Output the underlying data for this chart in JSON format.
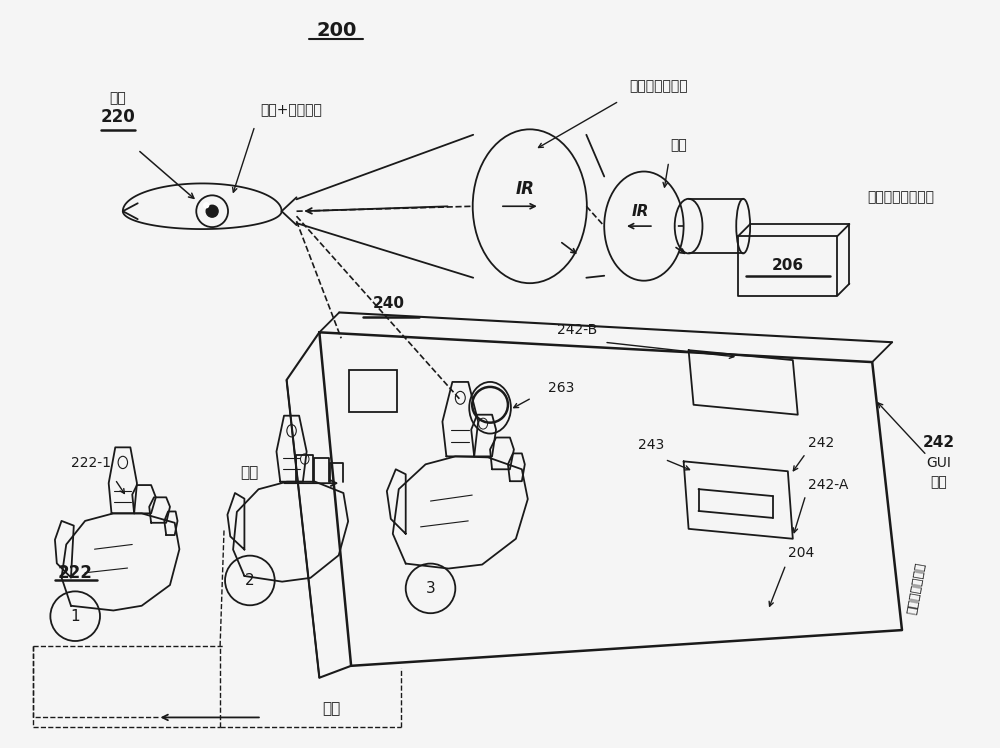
{
  "title": "200",
  "bg_color": "#f5f5f5",
  "labels": {
    "eye": "眼睛",
    "eye_num": "220",
    "pupil": "瞳孔+角膜反射",
    "pattern": "到摄像头的图案",
    "illuminate": "照射",
    "gaze": "眼睛凝視跟踪系统",
    "device_num": "206",
    "screen": "显示器触接屏幕",
    "approach": "接近",
    "release": "释放",
    "hand_num": "222",
    "finger_num": "222-1",
    "tablet_num": "240",
    "label_242b": "242-B",
    "label_263": "263",
    "label_243": "243",
    "label_242": "242",
    "label_242a": "242-A",
    "label_204": "204",
    "gui_num": "242",
    "gui_label": "GUI",
    "gui_element": "元素"
  }
}
